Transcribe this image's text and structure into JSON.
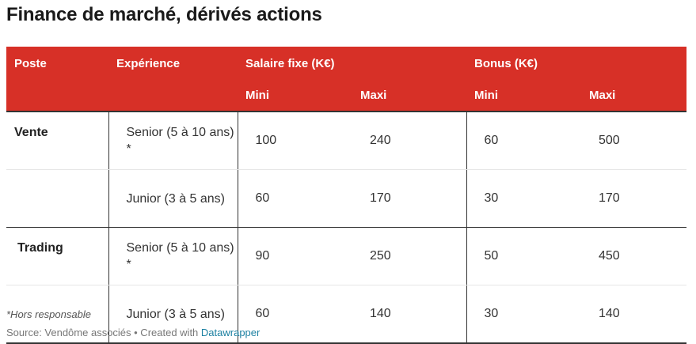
{
  "title": "Finance de marché, dérivés actions",
  "table": {
    "header_row1": {
      "poste": "Poste",
      "experience": "Expérience",
      "salaire_fixe": "Salaire fixe (K€)",
      "bonus": "Bonus (K€)"
    },
    "header_row2": {
      "salaire_mini": "Mini",
      "salaire_maxi": "Maxi",
      "bonus_mini": "Mini",
      "bonus_maxi": "Maxi"
    },
    "rows": [
      {
        "poste": "Vente",
        "experience": "Senior (5 à 10 ans) *",
        "salaire_mini": "100",
        "salaire_maxi": "240",
        "bonus_mini": "60",
        "bonus_maxi": "500"
      },
      {
        "poste": "",
        "experience": "Junior (3 à 5 ans)",
        "salaire_mini": "60",
        "salaire_maxi": "170",
        "bonus_mini": "30",
        "bonus_maxi": "170"
      },
      {
        "poste": "Trading",
        "experience": "Senior (5 à 10 ans) *",
        "salaire_mini": "90",
        "salaire_maxi": "250",
        "bonus_mini": "50",
        "bonus_maxi": "450"
      },
      {
        "poste": "",
        "experience": "Junior (3 à 5 ans)",
        "salaire_mini": "60",
        "salaire_maxi": "140",
        "bonus_mini": "30",
        "bonus_maxi": "140"
      }
    ]
  },
  "footnote": "*Hors responsable",
  "source": {
    "prefix": "Source: Vendôme associés • Created with",
    "link": "Datawrapper"
  },
  "colors": {
    "header_background": "#d73027",
    "header_text": "#ffffff",
    "link": "#1d81a2"
  }
}
